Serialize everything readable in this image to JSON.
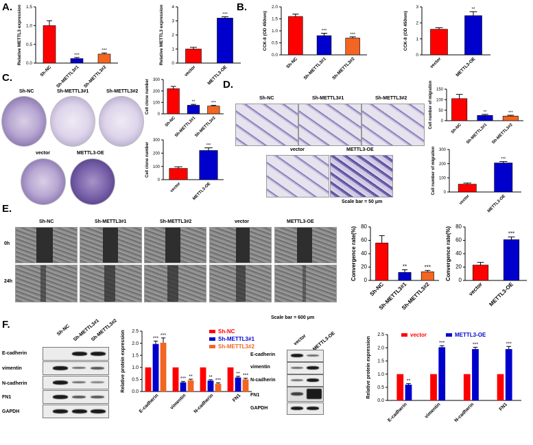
{
  "panels": {
    "a": "A.",
    "b": "B.",
    "c": "C.",
    "d": "D.",
    "e": "E.",
    "f": "F."
  },
  "panel_c_images": {
    "top": [
      "Sh-NC",
      "Sh-METTL3#1",
      "Sh-METTL3#2"
    ],
    "bottom": [
      "vector",
      "METTL3-OE"
    ]
  },
  "panel_d_images": {
    "top": [
      "Sh-NC",
      "Sh-METTL3#1",
      "Sh-METTL3#2"
    ],
    "bottom": [
      "vector",
      "METTL3-OE"
    ],
    "scale": "Scale bar = 50 μm"
  },
  "panel_e_images": {
    "columns": [
      "Sh-NC",
      "Sh-METTL3#1",
      "Sh-METTL3#2",
      "vector",
      "METTL3-OE"
    ],
    "rows": [
      "0h",
      "24h"
    ],
    "scale": "Scale bar = 600 μm"
  },
  "panel_f_blots": {
    "left_columns": [
      "Sh-NC",
      "Sh-METTL3#1",
      "Sh-METTL3#2"
    ],
    "right_columns": [
      "vector",
      "METTL3-OE"
    ],
    "rows": [
      "E-cadherin",
      "vimentin",
      "N-cadherin",
      "FN1",
      "GAPDH"
    ]
  },
  "colors": {
    "red": "#ff0000",
    "blue": "#0000cc",
    "orange": "#f26522"
  },
  "chart_data": [
    {
      "id": "a1",
      "type": "bar",
      "categories": [
        "Sh-NC",
        "Sh-METTL3#1",
        "Sh-METTL3#2"
      ],
      "values": [
        1.0,
        0.12,
        0.24
      ],
      "errors": [
        0.13,
        0.03,
        0.03
      ],
      "sig": [
        "",
        "***",
        "***"
      ],
      "colors": [
        "#ff0000",
        "#0000cc",
        "#f26522"
      ],
      "ylabel": "Relative METTL3 expression",
      "ylim": [
        0,
        1.5
      ],
      "yticks": [
        "0.0",
        "0.5",
        "1.0",
        "1.5"
      ]
    },
    {
      "id": "a2",
      "type": "bar",
      "categories": [
        "vector",
        "METTL3-OE"
      ],
      "values": [
        1.0,
        3.2
      ],
      "errors": [
        0.12,
        0.1
      ],
      "sig": [
        "",
        "***"
      ],
      "colors": [
        "#ff0000",
        "#0000cc"
      ],
      "ylabel": "Relative METTL3 expression",
      "ylim": [
        0,
        4
      ],
      "yticks": [
        "0",
        "1",
        "2",
        "3",
        "4"
      ]
    },
    {
      "id": "b1",
      "type": "bar",
      "categories": [
        "Sh-NC",
        "Sh-METTL3#1",
        "Sh-METTL3#2"
      ],
      "values": [
        1.6,
        0.8,
        0.7
      ],
      "errors": [
        0.1,
        0.1,
        0.05
      ],
      "sig": [
        "",
        "***",
        "***"
      ],
      "colors": [
        "#ff0000",
        "#0000cc",
        "#f26522"
      ],
      "ylabel": "CCK-8 (OD 450nm)",
      "ylim": [
        0,
        2.0
      ],
      "yticks": [
        "0.0",
        "0.5",
        "1.0",
        "1.5",
        "2.0"
      ]
    },
    {
      "id": "b2",
      "type": "bar",
      "categories": [
        "vector",
        "METTL3-OE"
      ],
      "values": [
        1.6,
        2.45
      ],
      "errors": [
        0.1,
        0.25
      ],
      "sig": [
        "",
        "**"
      ],
      "colors": [
        "#ff0000",
        "#0000cc"
      ],
      "ylabel": "CCK-8 (OD 450nm)",
      "ylim": [
        0,
        3
      ],
      "yticks": [
        "0",
        "1",
        "2",
        "3"
      ]
    },
    {
      "id": "c1",
      "type": "bar",
      "categories": [
        "Sh-NC",
        "Sh-METTL3#1",
        "Sh-METTL3#2"
      ],
      "values": [
        220,
        75,
        68
      ],
      "errors": [
        20,
        8,
        6
      ],
      "sig": [
        "",
        "**",
        "***"
      ],
      "colors": [
        "#ff0000",
        "#0000cc",
        "#f26522"
      ],
      "ylabel": "Cell clone number",
      "ylim": [
        0,
        300
      ],
      "yticks": [
        "0",
        "100",
        "200",
        "300"
      ]
    },
    {
      "id": "c2",
      "type": "bar",
      "categories": [
        "vector",
        "METTL3-OE"
      ],
      "values": [
        85,
        220
      ],
      "errors": [
        12,
        20
      ],
      "sig": [
        "",
        "***"
      ],
      "colors": [
        "#ff0000",
        "#0000cc"
      ],
      "ylabel": "Cell clone number",
      "ylim": [
        0,
        300
      ],
      "yticks": [
        "0",
        "100",
        "200",
        "300"
      ]
    },
    {
      "id": "d1",
      "type": "bar",
      "categories": [
        "Sh-NC",
        "Sh-METTL3#1",
        "Sh-METTL3#2"
      ],
      "values": [
        105,
        25,
        22
      ],
      "errors": [
        20,
        5,
        4
      ],
      "sig": [
        "",
        "**",
        "***"
      ],
      "colors": [
        "#ff0000",
        "#0000cc",
        "#f26522"
      ],
      "ylabel": "Cell number of migration",
      "ylim": [
        0,
        150
      ],
      "yticks": [
        "0",
        "50",
        "100",
        "150"
      ]
    },
    {
      "id": "d2",
      "type": "bar",
      "categories": [
        "vector",
        "METTL3-OE"
      ],
      "values": [
        55,
        205
      ],
      "errors": [
        8,
        10
      ],
      "sig": [
        "",
        "***"
      ],
      "colors": [
        "#ff0000",
        "#0000cc"
      ],
      "ylabel": "Cell number of migration",
      "ylim": [
        0,
        300
      ],
      "yticks": [
        "0",
        "100",
        "200",
        "300"
      ]
    },
    {
      "id": "e1",
      "type": "bar",
      "categories": [
        "Sh-NC",
        "Sh-METTL3#1",
        "Sh-METTL3#2"
      ],
      "values": [
        56,
        12,
        13
      ],
      "errors": [
        11,
        4,
        2
      ],
      "sig": [
        "",
        "**",
        "***"
      ],
      "colors": [
        "#ff0000",
        "#0000cc",
        "#f26522"
      ],
      "ylabel": "Convergence rate(%)",
      "ylim": [
        0,
        80
      ],
      "yticks": [
        "0",
        "20",
        "40",
        "60",
        "80"
      ]
    },
    {
      "id": "e2",
      "type": "bar",
      "categories": [
        "vector",
        "METTL3-OE"
      ],
      "values": [
        23,
        61
      ],
      "errors": [
        4,
        4
      ],
      "sig": [
        "",
        "***"
      ],
      "colors": [
        "#ff0000",
        "#0000cc"
      ],
      "ylabel": "Convergence rate(%)",
      "ylim": [
        0,
        80
      ],
      "yticks": [
        "0",
        "20",
        "40",
        "60",
        "80"
      ]
    },
    {
      "id": "f1",
      "type": "bar",
      "categories": [
        "E-cadherin",
        "vimentin",
        "N-cadherin",
        "FN1"
      ],
      "series": [
        {
          "name": "Sh-NC",
          "color": "#ff0000",
          "values": [
            1.0,
            1.0,
            1.0,
            1.0
          ],
          "errors": [
            0,
            0,
            0,
            0
          ],
          "sig": [
            "",
            "",
            "",
            ""
          ]
        },
        {
          "name": "Sh-METTL3#1",
          "color": "#0000cc",
          "values": [
            1.97,
            0.38,
            0.45,
            0.58
          ],
          "errors": [
            0.12,
            0.04,
            0.04,
            0.05
          ],
          "sig": [
            "***",
            "***",
            "**",
            "**"
          ]
        },
        {
          "name": "Sh-METTL3#2",
          "color": "#f26522",
          "values": [
            2.02,
            0.46,
            0.32,
            0.5
          ],
          "errors": [
            0.2,
            0.05,
            0.04,
            0.05
          ],
          "sig": [
            "***",
            "**",
            "***",
            "***"
          ]
        }
      ],
      "ylabel": "Relative protein expression",
      "ylim": [
        0,
        2.5
      ],
      "yticks": [
        "0.0",
        "0.5",
        "1.0",
        "1.5",
        "2.0",
        "2.5"
      ],
      "legend": "top-right"
    },
    {
      "id": "f2",
      "type": "bar",
      "categories": [
        "E-cadherin",
        "vimentin",
        "N-cadherin",
        "FN1"
      ],
      "series": [
        {
          "name": "vector",
          "color": "#ff0000",
          "values": [
            1.0,
            1.0,
            1.0,
            1.0
          ],
          "errors": [
            0,
            0,
            0,
            0
          ],
          "sig": [
            "",
            "",
            "",
            ""
          ]
        },
        {
          "name": "METTL3-OE",
          "color": "#0000cc",
          "values": [
            0.6,
            2.02,
            1.95,
            1.95
          ],
          "errors": [
            0.04,
            0.06,
            0.07,
            0.1
          ],
          "sig": [
            "**",
            "***",
            "***",
            "***"
          ]
        }
      ],
      "ylabel": "Relative protein expression",
      "ylim": [
        0,
        2.5
      ],
      "yticks": [
        "0.0",
        "0.5",
        "1.0",
        "1.5",
        "2.0",
        "2.5"
      ],
      "legend": "top"
    }
  ]
}
